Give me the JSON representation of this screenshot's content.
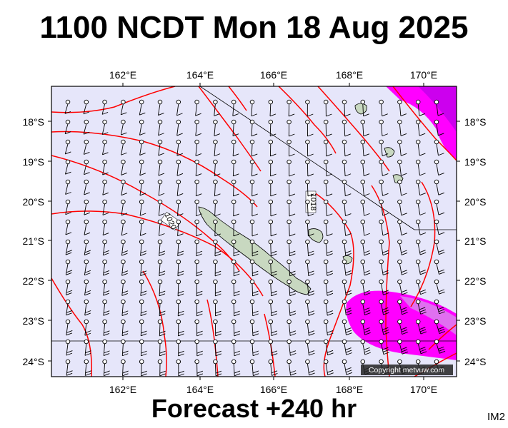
{
  "title": "1100 NCDT Mon 18 Aug 2025",
  "footer": "Forecast +240 hr",
  "corner_label": "IM2",
  "copyright": "Copyright metvuw.com",
  "lon_labels": [
    "162°E",
    "164°E",
    "166°E",
    "168°E",
    "170°E"
  ],
  "lat_labels": [
    "18°S",
    "19°S",
    "20°S",
    "21°S",
    "22°S",
    "23°S",
    "24°S"
  ],
  "isobar_labels": [
    "1020",
    "1018"
  ],
  "colors": {
    "sea": "#e6e6fa",
    "isobar": "#ff0000",
    "land": "#c8d8c0",
    "wind_strong": "#ff00ff",
    "wind_stronger": "#cc00cc",
    "grid_line": "#000000"
  }
}
